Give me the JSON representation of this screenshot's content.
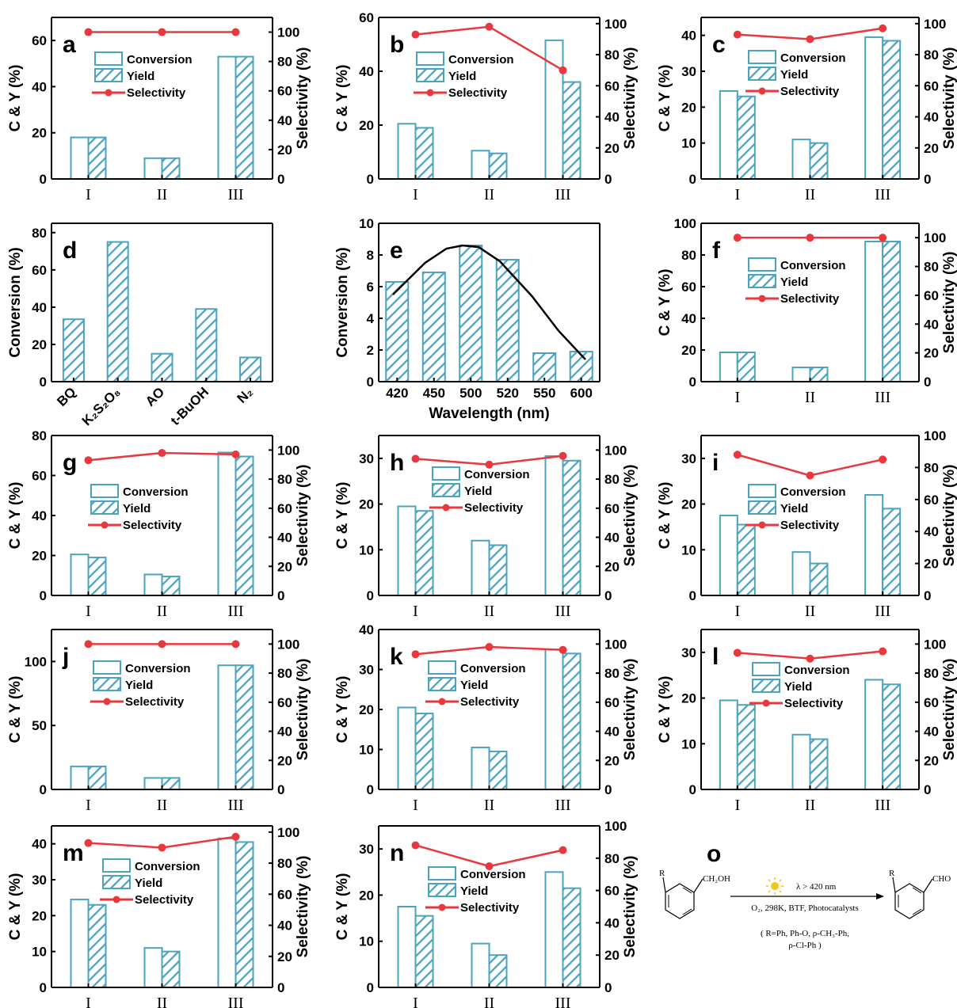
{
  "legend": {
    "conversion": "Conversion",
    "yield": "Yield",
    "selectivity": "Selectivity"
  },
  "colors": {
    "bar": "#4aa3c0",
    "line": "#e8383d",
    "axis": "#000000"
  },
  "chart_data": [
    {
      "id": "a",
      "type": "bar",
      "categories": [
        "I",
        "II",
        "III"
      ],
      "ylabel": "C & Y (%)",
      "y2label": "Selectivity (%)",
      "ylim": [
        0,
        70
      ],
      "yticks": [
        0,
        20,
        40,
        60
      ],
      "y2lim": [
        0,
        110
      ],
      "y2ticks": [
        0,
        20,
        40,
        60,
        80,
        100
      ],
      "series": [
        {
          "name": "Conversion",
          "values": [
            18,
            9,
            53
          ]
        },
        {
          "name": "Yield",
          "values": [
            18,
            9,
            53
          ]
        },
        {
          "name": "Selectivity",
          "axis": "right",
          "values": [
            100,
            100,
            100
          ]
        }
      ]
    },
    {
      "id": "b",
      "type": "bar",
      "categories": [
        "I",
        "II",
        "III"
      ],
      "ylabel": "C & Y (%)",
      "y2label": "Selectivity (%)",
      "ylim": [
        0,
        60
      ],
      "yticks": [
        0,
        20,
        40,
        60
      ],
      "y2lim": [
        0,
        104
      ],
      "y2ticks": [
        0,
        20,
        40,
        60,
        80,
        100
      ],
      "series": [
        {
          "name": "Conversion",
          "values": [
            20.5,
            10.5,
            51.5
          ]
        },
        {
          "name": "Yield",
          "values": [
            19,
            9.5,
            36
          ]
        },
        {
          "name": "Selectivity",
          "axis": "right",
          "values": [
            93,
            98,
            70
          ]
        }
      ]
    },
    {
      "id": "c",
      "type": "bar",
      "categories": [
        "I",
        "II",
        "III"
      ],
      "ylabel": "C & Y (%)",
      "y2label": "Selectivity (%)",
      "ylim": [
        0,
        45
      ],
      "yticks": [
        0,
        10,
        20,
        30,
        40
      ],
      "y2lim": [
        0,
        104
      ],
      "y2ticks": [
        0,
        20,
        40,
        60,
        80,
        100
      ],
      "series": [
        {
          "name": "Conversion",
          "values": [
            24.5,
            11,
            39.5
          ]
        },
        {
          "name": "Yield",
          "values": [
            23,
            10,
            38.5
          ]
        },
        {
          "name": "Selectivity",
          "axis": "right",
          "values": [
            93,
            90,
            97
          ]
        }
      ]
    },
    {
      "id": "d",
      "type": "bar",
      "categories": [
        "BQ",
        "K₂S₂O₈",
        "AO",
        "t-BuOH",
        "N₂"
      ],
      "ylabel": "Conversion (%)",
      "ylim": [
        0,
        85
      ],
      "yticks": [
        0,
        20,
        40,
        60,
        80
      ],
      "series": [
        {
          "name": "Conversion",
          "values": [
            33.5,
            75,
            15,
            39,
            13
          ]
        }
      ]
    },
    {
      "id": "e",
      "type": "bar",
      "categories": [
        "420",
        "450",
        "500",
        "520",
        "550",
        "600"
      ],
      "xlabel": "Wavelength (nm)",
      "ylabel": "Conversion (%)",
      "ylim": [
        0,
        10
      ],
      "yticks": [
        0,
        2,
        4,
        6,
        8,
        10
      ],
      "series": [
        {
          "name": "Conversion",
          "values": [
            6.3,
            6.9,
            8.6,
            7.7,
            1.8,
            1.9
          ]
        }
      ],
      "fit_curve": [
        [
          420,
          5.5
        ],
        [
          450,
          7.5
        ],
        [
          470,
          8.4
        ],
        [
          485,
          8.6
        ],
        [
          500,
          8.5
        ],
        [
          520,
          7.6
        ],
        [
          550,
          5.4
        ],
        [
          575,
          3.2
        ],
        [
          600,
          1.4
        ]
      ]
    },
    {
      "id": "f",
      "type": "bar",
      "categories": [
        "I",
        "II",
        "III"
      ],
      "ylabel": "C & Y (%)",
      "y2label": "Selectivity (%)",
      "ylim": [
        0,
        100
      ],
      "yticks": [
        0,
        20,
        40,
        60,
        80,
        100
      ],
      "y2lim": [
        0,
        110
      ],
      "y2ticks": [
        0,
        20,
        40,
        60,
        80,
        100
      ],
      "series": [
        {
          "name": "Conversion",
          "values": [
            18.5,
            9,
            88.5
          ]
        },
        {
          "name": "Yield",
          "values": [
            18.5,
            9,
            88.5
          ]
        },
        {
          "name": "Selectivity",
          "axis": "right",
          "values": [
            100,
            100,
            100
          ]
        }
      ]
    },
    {
      "id": "g",
      "type": "bar",
      "categories": [
        "I",
        "II",
        "III"
      ],
      "ylabel": "C & Y (%)",
      "y2label": "Selectivity (%)",
      "ylim": [
        0,
        80
      ],
      "yticks": [
        0,
        20,
        40,
        60,
        80
      ],
      "y2lim": [
        0,
        110
      ],
      "y2ticks": [
        0,
        20,
        40,
        60,
        80,
        100
      ],
      "series": [
        {
          "name": "Conversion",
          "values": [
            20.5,
            10.5,
            71.5
          ]
        },
        {
          "name": "Yield",
          "values": [
            19,
            9.5,
            69.5
          ]
        },
        {
          "name": "Selectivity",
          "axis": "right",
          "values": [
            93,
            98,
            97
          ]
        }
      ]
    },
    {
      "id": "h",
      "type": "bar",
      "categories": [
        "I",
        "II",
        "III"
      ],
      "ylabel": "C & Y (%)",
      "y2label": "Selectivity (%)",
      "ylim": [
        0,
        35
      ],
      "yticks": [
        0,
        10,
        20,
        30
      ],
      "y2lim": [
        0,
        110
      ],
      "y2ticks": [
        0,
        20,
        40,
        60,
        80,
        100
      ],
      "series": [
        {
          "name": "Conversion",
          "values": [
            19.5,
            12,
            30.5
          ]
        },
        {
          "name": "Yield",
          "values": [
            18.5,
            11,
            29.5
          ]
        },
        {
          "name": "Selectivity",
          "axis": "right",
          "values": [
            94,
            90,
            96
          ]
        }
      ]
    },
    {
      "id": "i",
      "type": "bar",
      "categories": [
        "I",
        "II",
        "III"
      ],
      "ylabel": "C & Y (%)",
      "y2label": "Selectivity (%)",
      "ylim": [
        0,
        35
      ],
      "yticks": [
        0,
        10,
        20,
        30
      ],
      "y2lim": [
        0,
        100
      ],
      "y2ticks": [
        0,
        20,
        40,
        60,
        80,
        100
      ],
      "series": [
        {
          "name": "Conversion",
          "values": [
            17.5,
            9.5,
            22
          ]
        },
        {
          "name": "Yield",
          "values": [
            15.5,
            7,
            19
          ]
        },
        {
          "name": "Selectivity",
          "axis": "right",
          "values": [
            88,
            75,
            85
          ]
        }
      ]
    },
    {
      "id": "j",
      "type": "bar",
      "categories": [
        "I",
        "II",
        "III"
      ],
      "ylabel": "C & Y (%)",
      "y2label": "Selectivity (%)",
      "ylim": [
        0,
        125
      ],
      "yticks": [
        0,
        50,
        100
      ],
      "y2lim": [
        0,
        110
      ],
      "y2ticks": [
        0,
        20,
        40,
        60,
        80,
        100
      ],
      "series": [
        {
          "name": "Conversion",
          "values": [
            18,
            9,
            97
          ]
        },
        {
          "name": "Yield",
          "values": [
            18,
            9,
            97
          ]
        },
        {
          "name": "Selectivity",
          "axis": "right",
          "values": [
            100,
            100,
            100
          ]
        }
      ]
    },
    {
      "id": "k",
      "type": "bar",
      "categories": [
        "I",
        "II",
        "III"
      ],
      "ylabel": "C & Y (%)",
      "y2label": "Selectivity (%)",
      "ylim": [
        0,
        40
      ],
      "yticks": [
        0,
        10,
        20,
        30,
        40
      ],
      "y2lim": [
        0,
        110
      ],
      "y2ticks": [
        0,
        20,
        40,
        60,
        80,
        100
      ],
      "series": [
        {
          "name": "Conversion",
          "values": [
            20.5,
            10.5,
            35
          ]
        },
        {
          "name": "Yield",
          "values": [
            19,
            9.5,
            34
          ]
        },
        {
          "name": "Selectivity",
          "axis": "right",
          "values": [
            93,
            98,
            96
          ]
        }
      ]
    },
    {
      "id": "l",
      "type": "bar",
      "categories": [
        "I",
        "II",
        "III"
      ],
      "ylabel": "C & Y (%)",
      "y2label": "Selectivity (%)",
      "ylim": [
        0,
        35
      ],
      "yticks": [
        0,
        10,
        20,
        30
      ],
      "y2lim": [
        0,
        110
      ],
      "y2ticks": [
        0,
        20,
        40,
        60,
        80,
        100
      ],
      "series": [
        {
          "name": "Conversion",
          "values": [
            19.5,
            12,
            24
          ]
        },
        {
          "name": "Yield",
          "values": [
            18.5,
            11,
            23
          ]
        },
        {
          "name": "Selectivity",
          "axis": "right",
          "values": [
            94,
            90,
            95
          ]
        }
      ]
    },
    {
      "id": "m",
      "type": "bar",
      "categories": [
        "I",
        "II",
        "III"
      ],
      "ylabel": "C & Y (%)",
      "y2label": "Selectivity (%)",
      "ylim": [
        0,
        45
      ],
      "yticks": [
        0,
        10,
        20,
        30,
        40
      ],
      "y2lim": [
        0,
        104
      ],
      "y2ticks": [
        0,
        20,
        40,
        60,
        80,
        100
      ],
      "series": [
        {
          "name": "Conversion",
          "values": [
            24.5,
            11,
            41.5
          ]
        },
        {
          "name": "Yield",
          "values": [
            23,
            10,
            40.5
          ]
        },
        {
          "name": "Selectivity",
          "axis": "right",
          "values": [
            93,
            90,
            97
          ]
        }
      ]
    },
    {
      "id": "n",
      "type": "bar",
      "categories": [
        "I",
        "II",
        "III"
      ],
      "ylabel": "C & Y (%)",
      "y2label": "Selectivity (%)",
      "ylim": [
        0,
        35
      ],
      "yticks": [
        0,
        10,
        20,
        30
      ],
      "y2lim": [
        0,
        100
      ],
      "y2ticks": [
        0,
        20,
        40,
        60,
        80,
        100
      ],
      "series": [
        {
          "name": "Conversion",
          "values": [
            17.5,
            9.5,
            25
          ]
        },
        {
          "name": "Yield",
          "values": [
            15.5,
            7,
            21.5
          ]
        },
        {
          "name": "Selectivity",
          "axis": "right",
          "values": [
            88,
            75,
            85
          ]
        }
      ]
    }
  ],
  "scheme": {
    "letter": "o",
    "reactant_sub": "R",
    "reactant_group": "CH₂OH",
    "light": "λ > 420 nm",
    "conditions": "O₂, 298K, BTF, Photocatalysts",
    "r_line1": "( R=Ph, Ph-O, ρ-CH₃-Ph,",
    "r_line2": "ρ-Cl-Ph )",
    "product_sub": "R",
    "product_group": "CHO"
  }
}
